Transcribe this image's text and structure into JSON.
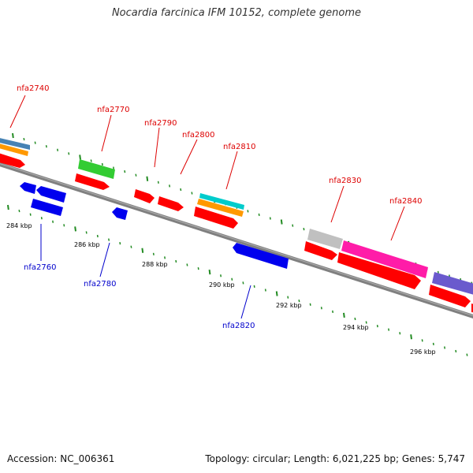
{
  "title": "Nocardia farcinica IFM 10152, complete genome",
  "footer": {
    "accession": "Accession: NC_006361",
    "summary": "Topology: circular; Length: 6,021,225 bp; Genes: 5,747"
  },
  "colors": {
    "forward_label": "#dd0000",
    "reverse_label": "#0000cc",
    "backbone": "#808080",
    "tick": "#228b22"
  },
  "scale_labels": [
    "284 kbp",
    "286 kbp",
    "288 kbp",
    "290 kbp",
    "292 kbp",
    "294 kbp",
    "296 kbp"
  ],
  "gene_labels": {
    "forward": [
      "nfa2740",
      "nfa2770",
      "nfa2790",
      "nfa2800",
      "nfa2810",
      "nfa2830",
      "nfa2840"
    ],
    "reverse": [
      "nfa2760",
      "nfa2780",
      "nfa2820"
    ]
  },
  "feature_colors": {
    "red": "#ff0000",
    "blue": "#0000ee",
    "green": "#33cc33",
    "orange": "#ff9900",
    "cyan": "#00cccc",
    "steelblue": "#4682b4",
    "gray": "#c0c0c0",
    "magenta": "#ff1ca8",
    "slate": "#6a5acd"
  }
}
